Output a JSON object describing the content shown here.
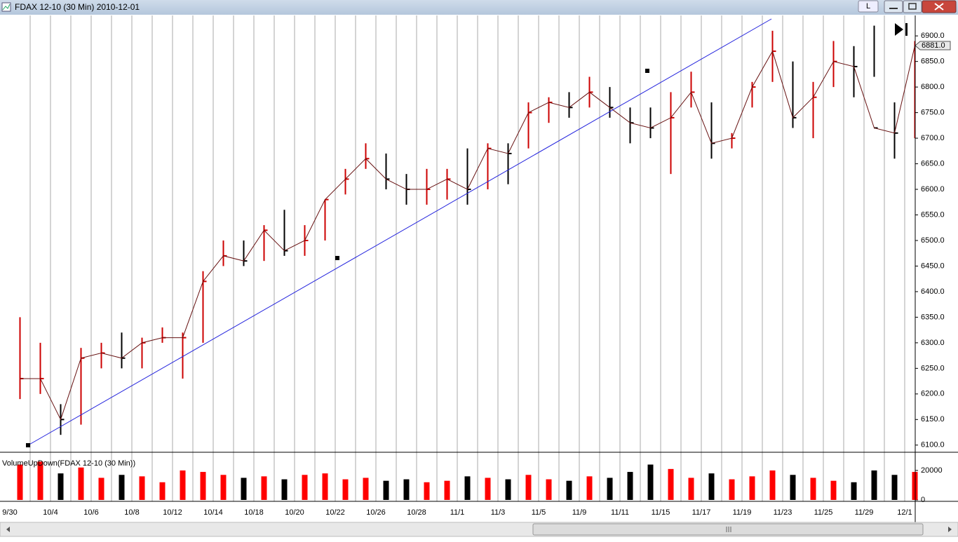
{
  "window": {
    "title": "FDAX 12-10 (30 Min)  2010-12-01",
    "button": "L"
  },
  "chart_data": [
    {
      "type": "hlc",
      "categories": [
        "9/30",
        null,
        "10/4",
        null,
        "10/6",
        null,
        "10/8",
        null,
        "10/12",
        null,
        "10/14",
        null,
        "10/18",
        null,
        "10/20",
        null,
        "10/22",
        null,
        "10/26",
        null,
        "10/28",
        null,
        "11/1",
        null,
        "11/3",
        null,
        "11/5",
        null,
        "11/9",
        null,
        "11/11",
        null,
        "11/15",
        null,
        "11/17",
        null,
        "11/19",
        null,
        "11/23",
        null,
        "11/25",
        null,
        "11/29",
        null,
        "12/1"
      ],
      "high": [
        6350,
        6300,
        6180,
        6290,
        6300,
        6320,
        6310,
        6330,
        6320,
        6440,
        6500,
        6500,
        6530,
        6560,
        6530,
        6580,
        6640,
        6690,
        6670,
        6630,
        6640,
        6640,
        6680,
        6690,
        6690,
        6770,
        6780,
        6790,
        6820,
        6800,
        6760,
        6760,
        6790,
        6830,
        6770,
        6710,
        6810,
        6910,
        6850,
        6810,
        6890,
        6880,
        6920,
        6770,
        6890
      ],
      "low": [
        6190,
        6200,
        6120,
        6140,
        6250,
        6250,
        6250,
        6300,
        6230,
        6300,
        6450,
        6450,
        6460,
        6470,
        6470,
        6500,
        6590,
        6640,
        6600,
        6570,
        6570,
        6580,
        6570,
        6600,
        6610,
        6680,
        6730,
        6740,
        6760,
        6740,
        6690,
        6700,
        6630,
        6760,
        6660,
        6680,
        6760,
        6810,
        6720,
        6700,
        6800,
        6780,
        6820,
        6660,
        6700
      ],
      "close": [
        6230,
        6230,
        6150,
        6270,
        6280,
        6270,
        6300,
        6310,
        6310,
        6420,
        6470,
        6460,
        6520,
        6480,
        6500,
        6580,
        6620,
        6660,
        6620,
        6600,
        6600,
        6620,
        6600,
        6680,
        6670,
        6750,
        6770,
        6760,
        6790,
        6760,
        6730,
        6720,
        6740,
        6790,
        6690,
        6700,
        6800,
        6870,
        6740,
        6780,
        6850,
        6840,
        6720,
        6710,
        6881
      ],
      "last_label": "6881.0",
      "colors": {
        "up": "#cc0000",
        "down": "#000000"
      },
      "ylim": [
        6086,
        6940
      ],
      "yticks": [
        {
          "value": 6100,
          "label": "6100.0"
        },
        {
          "value": 6150,
          "label": "6150.0"
        },
        {
          "value": 6200,
          "label": "6200.0"
        },
        {
          "value": 6250,
          "label": "6250.0"
        },
        {
          "value": 6300,
          "label": "6300.0"
        },
        {
          "value": 6350,
          "label": "6350.0"
        },
        {
          "value": 6400,
          "label": "6400.0"
        },
        {
          "value": 6450,
          "label": "6450.0"
        },
        {
          "value": 6500,
          "label": "6500.0"
        },
        {
          "value": 6550,
          "label": "6550.0"
        },
        {
          "value": 6600,
          "label": "6600.0"
        },
        {
          "value": 6650,
          "label": "6650.0"
        },
        {
          "value": 6700,
          "label": "6700.0"
        },
        {
          "value": 6750,
          "label": "6750.0"
        },
        {
          "value": 6800,
          "label": "6800.0"
        },
        {
          "value": 6850,
          "label": "6850.0"
        },
        {
          "value": 6900,
          "label": "6900.0"
        }
      ],
      "grid": true
    },
    {
      "type": "bar",
      "title": "VolumeUpDown(FDAX 12-10 (30 Min))",
      "values": [
        24000,
        26000,
        18000,
        22000,
        15000,
        17000,
        16000,
        12000,
        20000,
        19000,
        17000,
        15000,
        16000,
        14000,
        17000,
        18000,
        14000,
        15000,
        13000,
        14000,
        12000,
        13000,
        16000,
        15000,
        14000,
        17000,
        14000,
        13000,
        16000,
        15000,
        19000,
        24000,
        21000,
        15000,
        18000,
        14000,
        16000,
        20000,
        17000,
        15000,
        13000,
        12000,
        20000,
        17000,
        19000
      ],
      "colors": {
        "up": "#ff0000",
        "down": "#000000"
      },
      "ylim": [
        0,
        31400
      ],
      "yticks": [
        0,
        20000
      ]
    }
  ]
}
